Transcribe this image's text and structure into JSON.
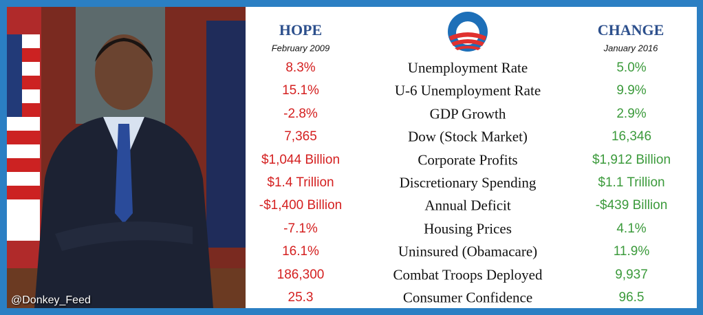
{
  "header": {
    "hope_title": "HOPE",
    "hope_date": "February 2009",
    "change_title": "CHANGE",
    "change_date": "January 2016"
  },
  "rows": [
    [
      "8.3%",
      "Unemployment Rate",
      "5.0%"
    ],
    [
      "15.1%",
      "U-6 Unemployment Rate",
      "9.9%"
    ],
    [
      "-2.8%",
      "GDP Growth",
      "2.9%"
    ],
    [
      "7,365",
      "Dow (Stock Market)",
      "16,346"
    ],
    [
      "$1,044 Billion",
      "Corporate Profits",
      "$1,912 Billion"
    ],
    [
      "$1.4 Trillion",
      "Discretionary Spending",
      "$1.1 Trillion"
    ],
    [
      "-$1,400 Billion",
      "Annual Deficit",
      "-$439 Billion"
    ],
    [
      "-7.1%",
      "Housing Prices",
      "4.1%"
    ],
    [
      "16.1%",
      "Uninsured (Obamacare)",
      "11.9%"
    ],
    [
      "186,300",
      "Combat Troops Deployed",
      "9,937"
    ],
    [
      "25.3",
      "Consumer Confidence",
      "96.5"
    ]
  ],
  "watermark": "@Donkey_Feed"
}
